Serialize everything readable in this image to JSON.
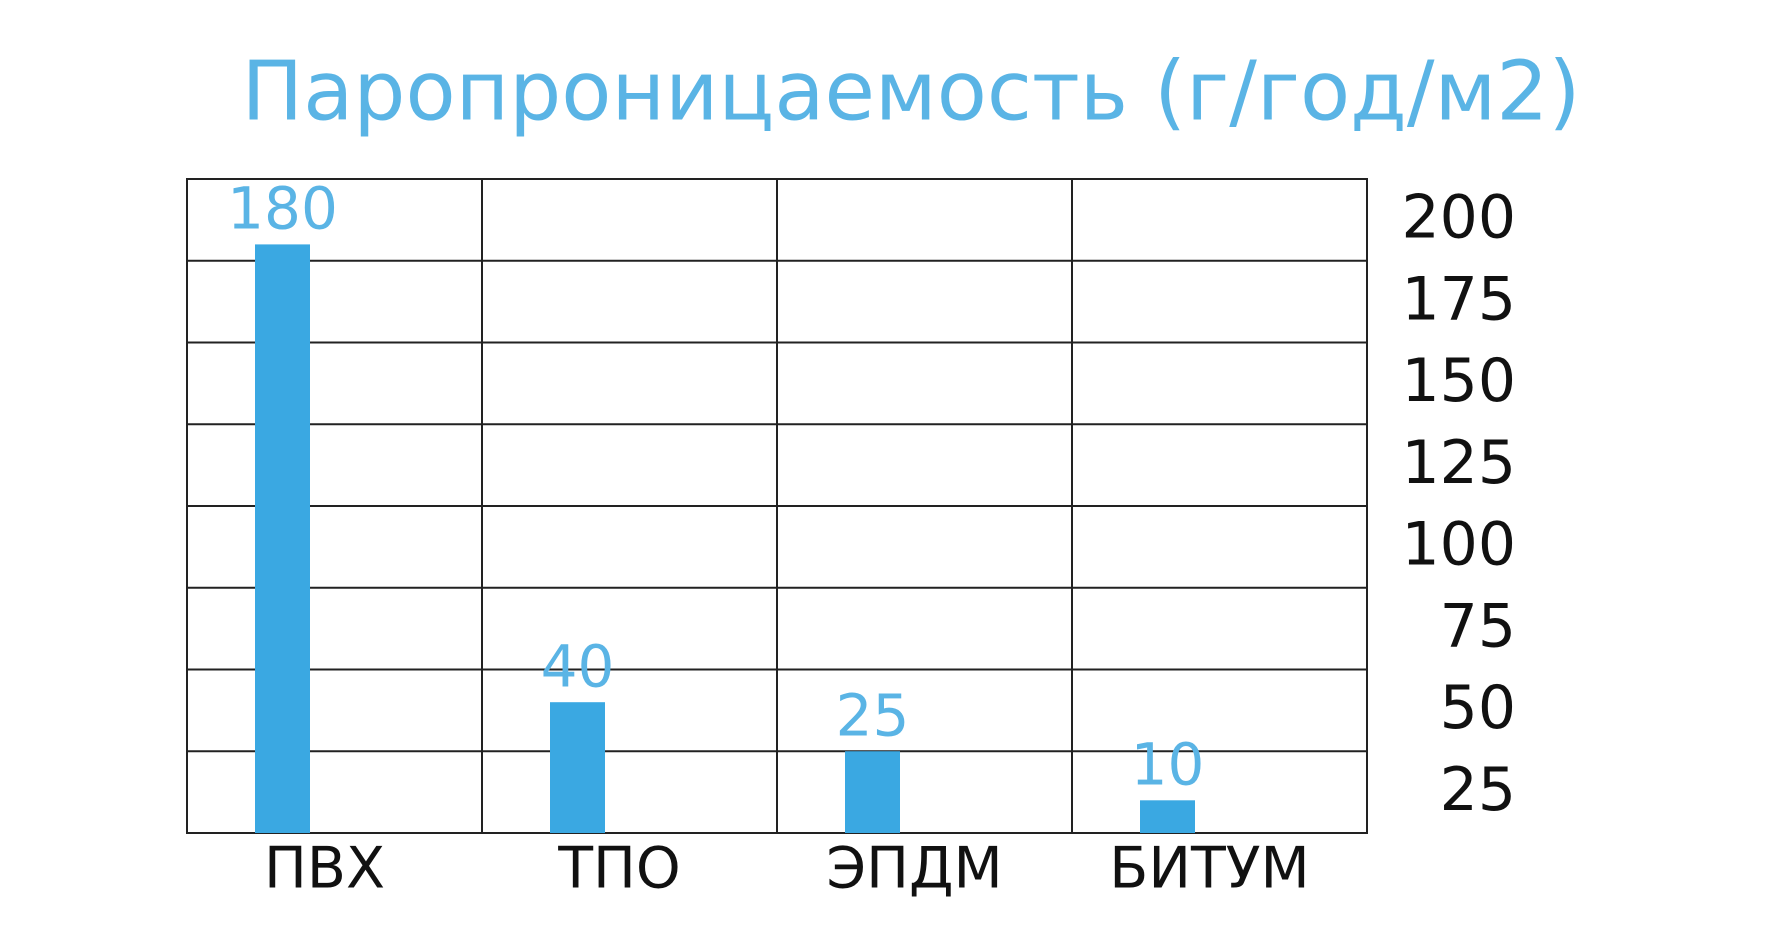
{
  "chart_data": {
    "type": "bar",
    "title": "Паропроницаемость (г/год/м2)",
    "categories": [
      "ПВХ",
      "ТПО",
      "ЭПДМ",
      "БИТУМ"
    ],
    "values": [
      180,
      40,
      25,
      10
    ],
    "color": "#3aa8e2",
    "ylim": [
      0,
      200
    ],
    "yticks": [
      25,
      50,
      75,
      100,
      125,
      150,
      175,
      200
    ],
    "grid": true
  }
}
